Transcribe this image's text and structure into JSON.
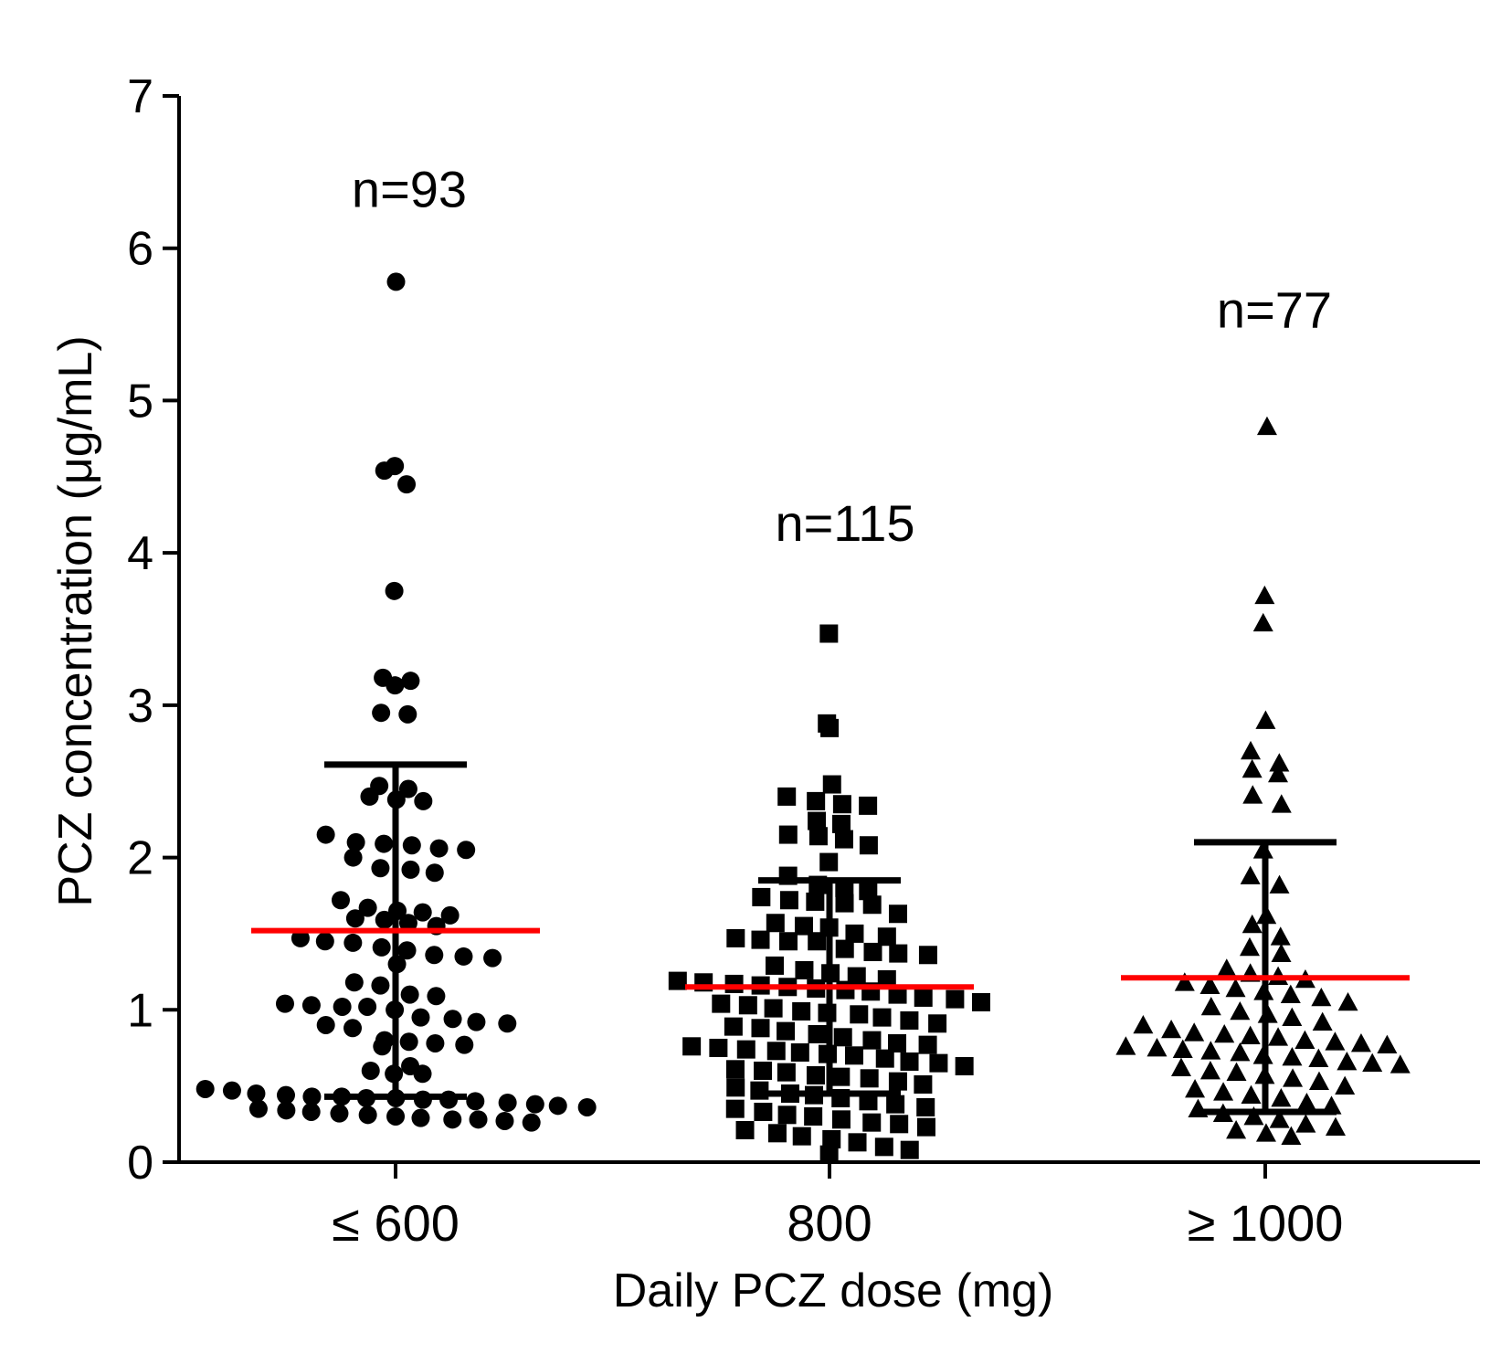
{
  "chart_data": {
    "type": "scatter",
    "ylabel": "PCZ concentration (μg/mL)",
    "xlabel": "Daily PCZ dose (mg)",
    "ylim": [
      0,
      7
    ],
    "yticks": [
      0,
      1,
      2,
      3,
      4,
      5,
      6,
      7
    ],
    "categories": [
      "≤ 600",
      "800",
      "≥ 1000"
    ],
    "groups": [
      {
        "name": "≤ 600",
        "marker": "circle",
        "n_label": "n=93",
        "mean": 1.52,
        "sd_upper": 2.61,
        "sd_lower": 0.43,
        "values": [
          5.78,
          4.57,
          4.54,
          4.45,
          3.75,
          3.18,
          3.16,
          3.13,
          2.95,
          2.94,
          2.47,
          2.45,
          2.4,
          2.38,
          2.37,
          2.15,
          2.1,
          2.09,
          2.08,
          2.06,
          2.05,
          2.0,
          1.93,
          1.92,
          1.9,
          1.72,
          1.67,
          1.65,
          1.64,
          1.62,
          1.6,
          1.59,
          1.57,
          1.55,
          1.47,
          1.45,
          1.44,
          1.41,
          1.39,
          1.36,
          1.35,
          1.34,
          1.3,
          1.18,
          1.16,
          1.1,
          1.09,
          1.04,
          1.03,
          1.02,
          1.02,
          1.0,
          0.95,
          0.94,
          0.92,
          0.91,
          0.9,
          0.88,
          0.8,
          0.79,
          0.78,
          0.77,
          0.76,
          0.63,
          0.6,
          0.58,
          0.58,
          0.48,
          0.47,
          0.45,
          0.44,
          0.43,
          0.43,
          0.42,
          0.42,
          0.41,
          0.41,
          0.4,
          0.39,
          0.38,
          0.37,
          0.36,
          0.35,
          0.34,
          0.33,
          0.32,
          0.31,
          0.3,
          0.29,
          0.28,
          0.28,
          0.27,
          0.26
        ]
      },
      {
        "name": "800",
        "marker": "square",
        "n_label": "n=115",
        "mean": 1.15,
        "sd_upper": 1.85,
        "sd_lower": 0.45,
        "values": [
          3.47,
          2.88,
          2.85,
          2.48,
          2.4,
          2.37,
          2.35,
          2.34,
          2.24,
          2.22,
          2.15,
          2.14,
          2.12,
          2.08,
          1.97,
          1.88,
          1.82,
          1.8,
          1.78,
          1.74,
          1.72,
          1.71,
          1.7,
          1.69,
          1.63,
          1.57,
          1.55,
          1.54,
          1.5,
          1.48,
          1.47,
          1.46,
          1.45,
          1.45,
          1.4,
          1.38,
          1.37,
          1.36,
          1.29,
          1.26,
          1.24,
          1.22,
          1.2,
          1.19,
          1.18,
          1.17,
          1.16,
          1.15,
          1.14,
          1.13,
          1.12,
          1.1,
          1.08,
          1.07,
          1.05,
          1.04,
          1.03,
          1.01,
          0.99,
          0.98,
          0.97,
          0.95,
          0.93,
          0.91,
          0.89,
          0.88,
          0.86,
          0.84,
          0.82,
          0.8,
          0.78,
          0.77,
          0.76,
          0.75,
          0.74,
          0.73,
          0.72,
          0.71,
          0.7,
          0.68,
          0.66,
          0.65,
          0.63,
          0.61,
          0.6,
          0.59,
          0.57,
          0.56,
          0.55,
          0.53,
          0.51,
          0.49,
          0.47,
          0.45,
          0.44,
          0.42,
          0.4,
          0.38,
          0.36,
          0.35,
          0.33,
          0.31,
          0.3,
          0.28,
          0.26,
          0.25,
          0.23,
          0.21,
          0.19,
          0.17,
          0.15,
          0.13,
          0.1,
          0.08,
          0.05
        ]
      },
      {
        "name": "≥ 1000",
        "marker": "triangle",
        "n_label": "n=77",
        "mean": 1.21,
        "sd_upper": 2.1,
        "sd_lower": 0.33,
        "values": [
          4.83,
          3.72,
          3.54,
          2.9,
          2.7,
          2.62,
          2.58,
          2.55,
          2.41,
          2.35,
          2.05,
          1.88,
          1.82,
          1.62,
          1.56,
          1.48,
          1.41,
          1.37,
          1.27,
          1.24,
          1.22,
          1.2,
          1.18,
          1.16,
          1.14,
          1.12,
          1.1,
          1.08,
          1.05,
          1.02,
          0.99,
          0.97,
          0.95,
          0.92,
          0.9,
          0.87,
          0.85,
          0.84,
          0.83,
          0.82,
          0.8,
          0.79,
          0.78,
          0.77,
          0.76,
          0.75,
          0.74,
          0.73,
          0.72,
          0.7,
          0.69,
          0.68,
          0.66,
          0.65,
          0.64,
          0.62,
          0.6,
          0.59,
          0.57,
          0.55,
          0.53,
          0.5,
          0.48,
          0.46,
          0.44,
          0.42,
          0.39,
          0.37,
          0.35,
          0.32,
          0.3,
          0.28,
          0.25,
          0.23,
          0.21,
          0.19,
          0.17
        ]
      }
    ]
  }
}
